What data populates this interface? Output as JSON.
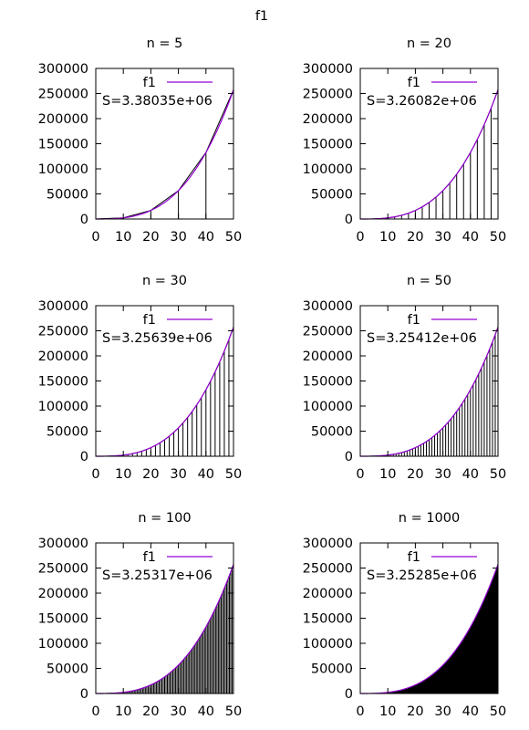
{
  "figure_title": "f1",
  "chart_data": [
    {
      "type": "line",
      "title": "n = 5",
      "n": 5,
      "series": [
        {
          "name": "f1"
        }
      ],
      "annotation": "S=3.38035e+06",
      "x_ticks": [
        0,
        10,
        20,
        30,
        40,
        50
      ],
      "y_ticks": [
        0,
        50000,
        100000,
        150000,
        200000,
        250000,
        300000
      ],
      "xlim": [
        0,
        50
      ],
      "ylim": [
        0,
        300000
      ]
    },
    {
      "type": "line",
      "title": "n = 20",
      "n": 20,
      "series": [
        {
          "name": "f1"
        }
      ],
      "annotation": "S=3.26082e+06",
      "x_ticks": [
        0,
        10,
        20,
        30,
        40,
        50
      ],
      "y_ticks": [
        0,
        50000,
        100000,
        150000,
        200000,
        250000,
        300000
      ],
      "xlim": [
        0,
        50
      ],
      "ylim": [
        0,
        300000
      ]
    },
    {
      "type": "line",
      "title": "n = 30",
      "n": 30,
      "series": [
        {
          "name": "f1"
        }
      ],
      "annotation": "S=3.25639e+06",
      "x_ticks": [
        0,
        10,
        20,
        30,
        40,
        50
      ],
      "y_ticks": [
        0,
        50000,
        100000,
        150000,
        200000,
        250000,
        300000
      ],
      "xlim": [
        0,
        50
      ],
      "ylim": [
        0,
        300000
      ]
    },
    {
      "type": "line",
      "title": "n = 50",
      "n": 50,
      "series": [
        {
          "name": "f1"
        }
      ],
      "annotation": "S=3.25412e+06",
      "x_ticks": [
        0,
        10,
        20,
        30,
        40,
        50
      ],
      "y_ticks": [
        0,
        50000,
        100000,
        150000,
        200000,
        250000,
        300000
      ],
      "xlim": [
        0,
        50
      ],
      "ylim": [
        0,
        300000
      ]
    },
    {
      "type": "line",
      "title": "n = 100",
      "n": 100,
      "series": [
        {
          "name": "f1"
        }
      ],
      "annotation": "S=3.25317e+06",
      "x_ticks": [
        0,
        10,
        20,
        30,
        40,
        50
      ],
      "y_ticks": [
        0,
        50000,
        100000,
        150000,
        200000,
        250000,
        300000
      ],
      "xlim": [
        0,
        50
      ],
      "ylim": [
        0,
        300000
      ]
    },
    {
      "type": "line",
      "title": "n = 1000",
      "n": 1000,
      "series": [
        {
          "name": "f1"
        }
      ],
      "annotation": "S=3.25285e+06",
      "x_ticks": [
        0,
        10,
        20,
        30,
        40,
        50
      ],
      "y_ticks": [
        0,
        50000,
        100000,
        150000,
        200000,
        250000,
        300000
      ],
      "xlim": [
        0,
        50
      ],
      "ylim": [
        0,
        300000
      ]
    }
  ]
}
